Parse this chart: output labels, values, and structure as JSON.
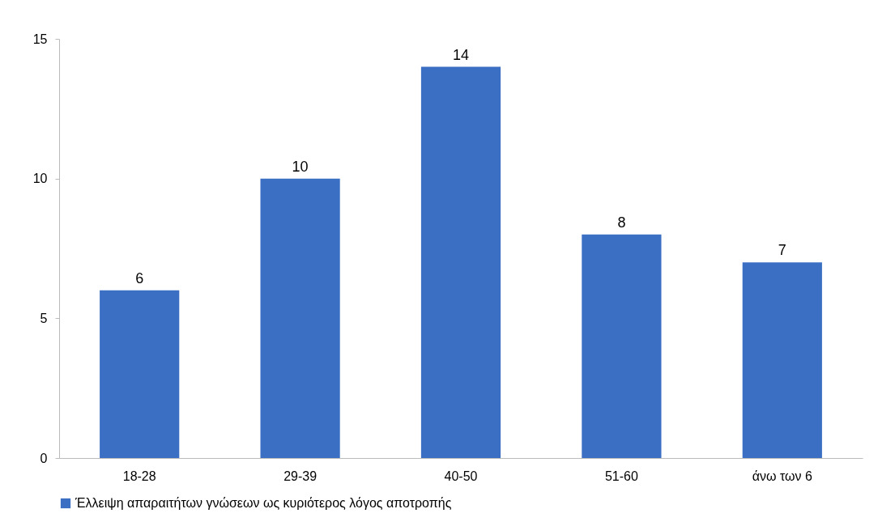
{
  "chart_data": {
    "type": "bar",
    "categories": [
      "18-28",
      "29-39",
      "40-50",
      "51-60",
      "άνω των 6"
    ],
    "series": [
      {
        "name": "Έλλειψη απαραιτήτων γνώσεων ως κυριότερος λόγος αποτροπής",
        "color": "#3a6fc4",
        "values": [
          6,
          10,
          14,
          8,
          7
        ]
      }
    ],
    "ylim": [
      0,
      15
    ],
    "yticks": [
      0,
      5,
      10,
      15
    ],
    "grid": false,
    "legend": "bottom",
    "data_labels": true
  }
}
